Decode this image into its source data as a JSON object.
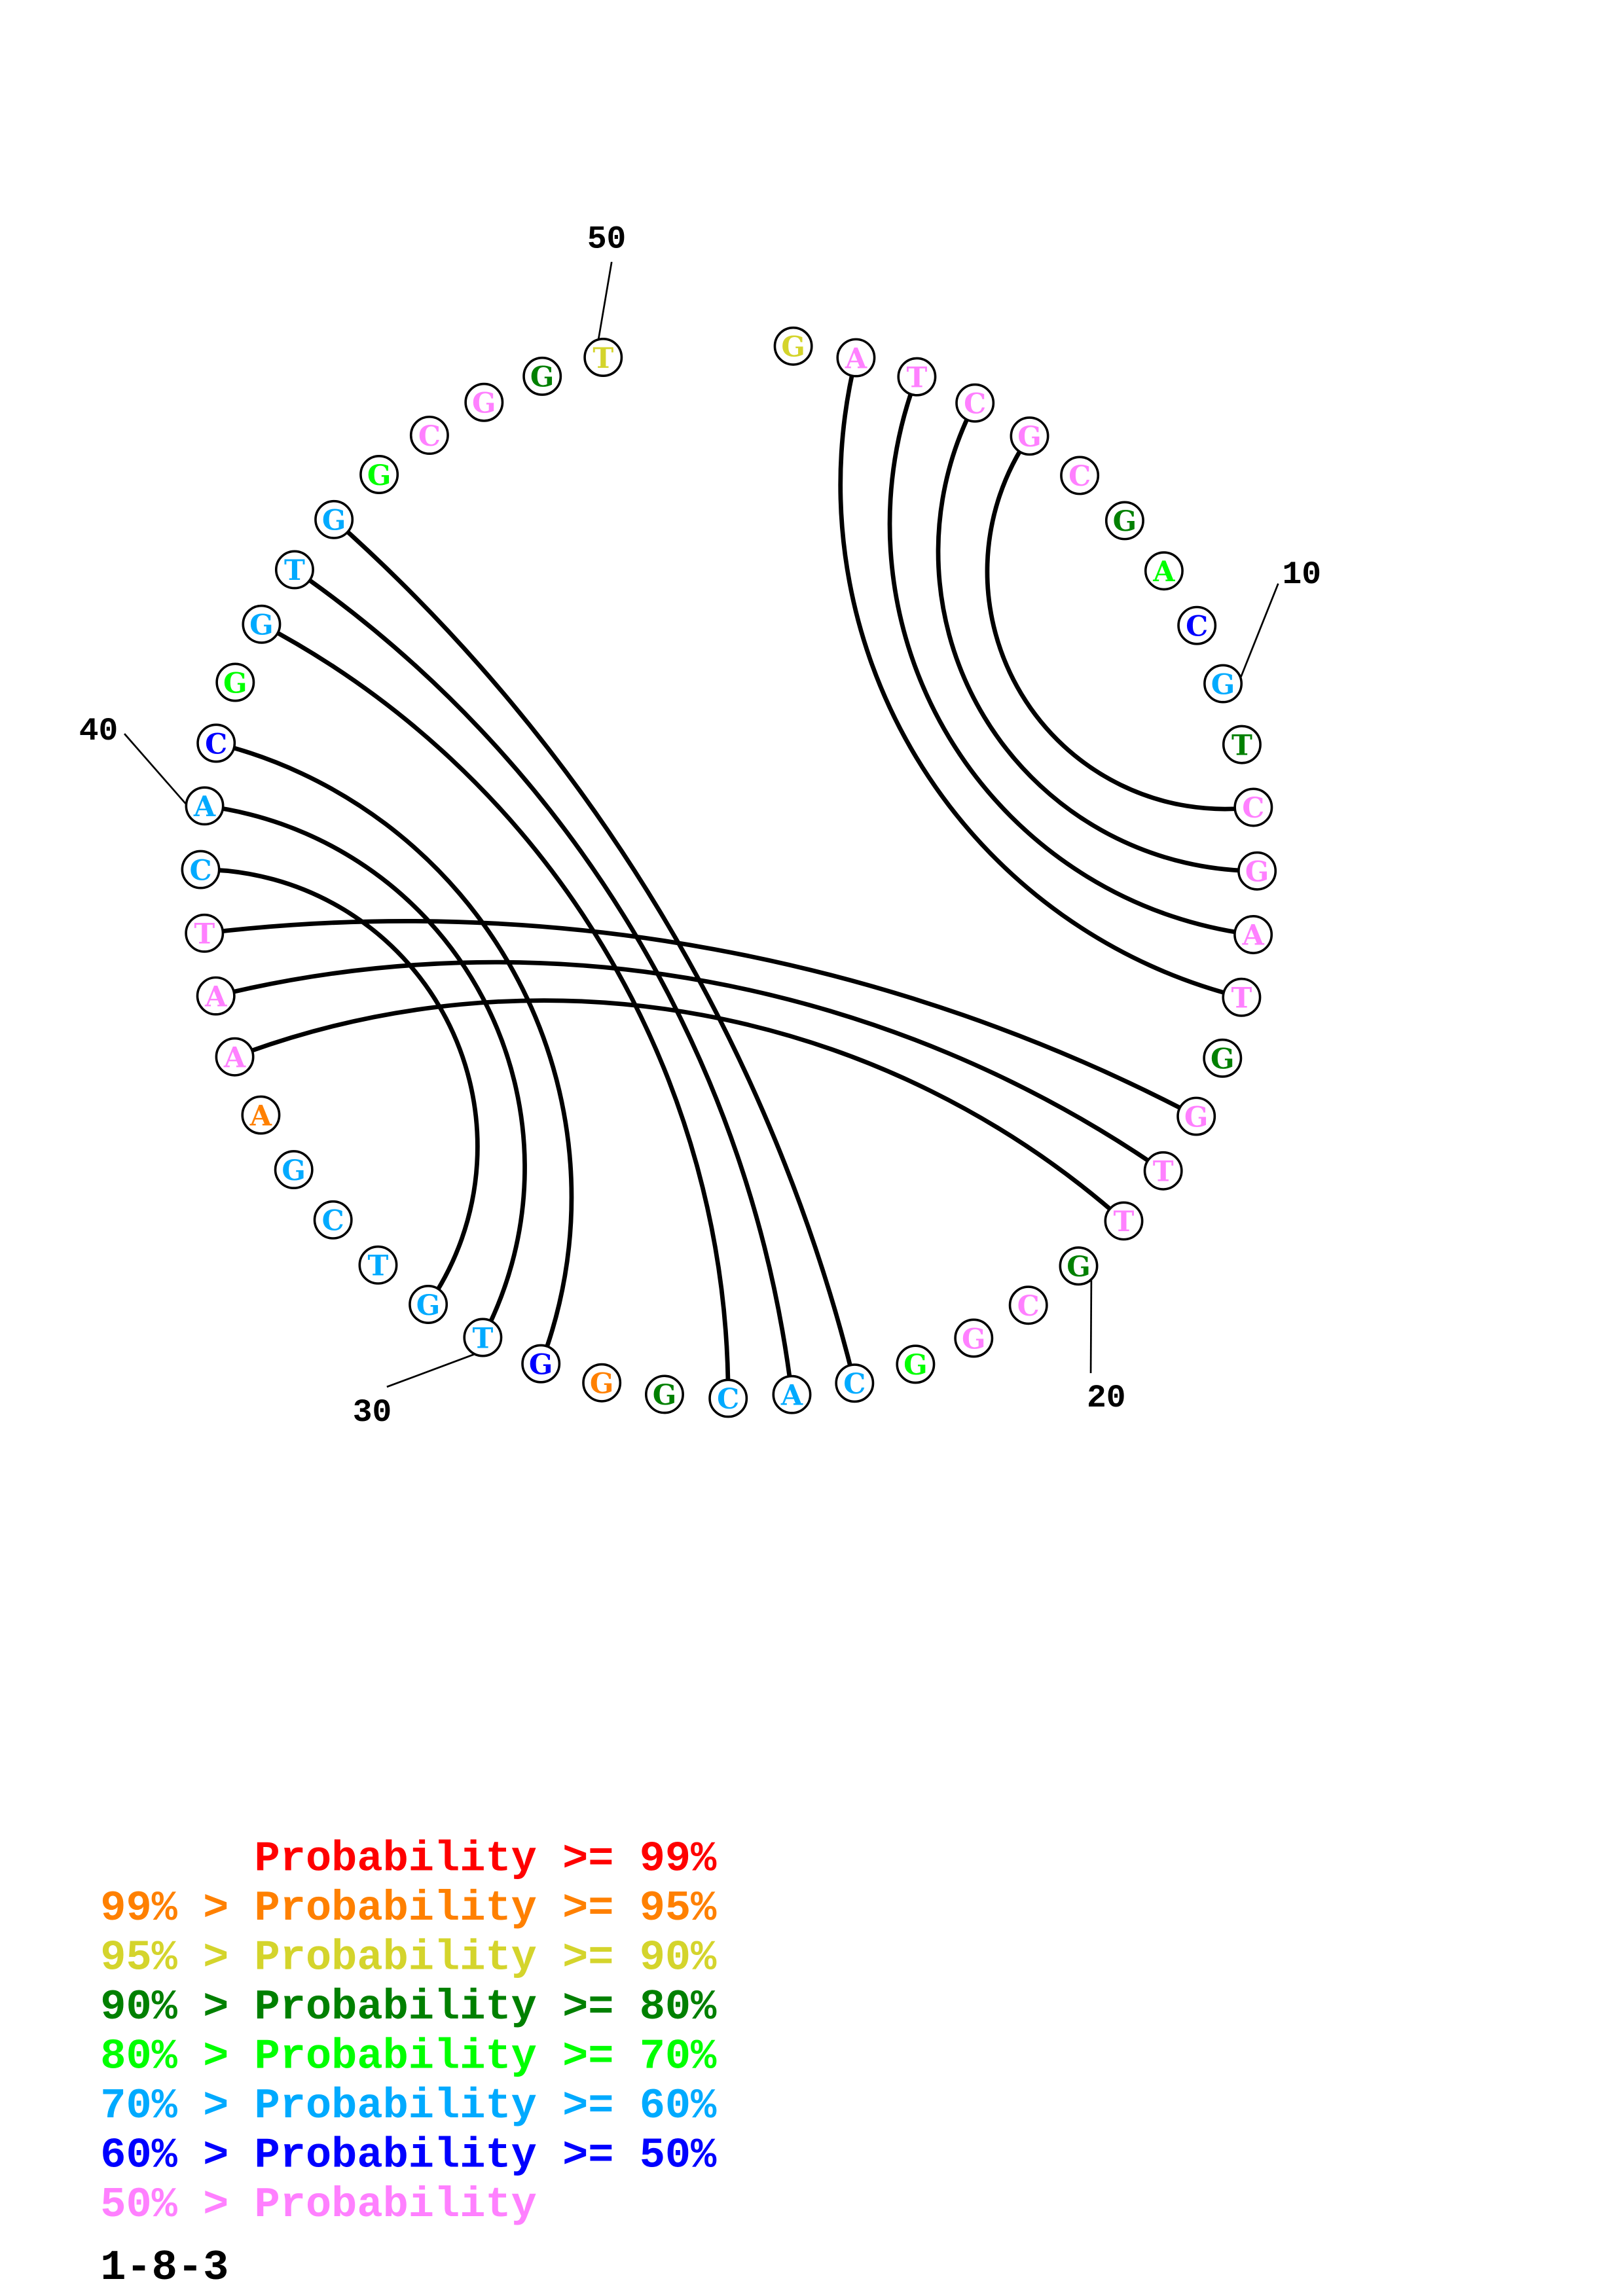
{
  "diagram": {
    "sequence": [
      "G",
      "A",
      "T",
      "C",
      "G",
      "C",
      "G",
      "A",
      "C",
      "G",
      "T",
      "C",
      "G",
      "A",
      "T",
      "G",
      "G",
      "T",
      "T",
      "G",
      "C",
      "G",
      "G",
      "C",
      "A",
      "C",
      "G",
      "G",
      "G",
      "T",
      "G",
      "T",
      "C",
      "G",
      "A",
      "A",
      "A",
      "T",
      "C",
      "A",
      "C",
      "G",
      "G",
      "T",
      "G",
      "G",
      "C",
      "G",
      "G",
      "T"
    ],
    "probability_class": [
      2,
      7,
      7,
      7,
      7,
      7,
      3,
      4,
      6,
      5,
      3,
      7,
      7,
      7,
      7,
      3,
      7,
      7,
      7,
      3,
      7,
      7,
      4,
      5,
      5,
      5,
      3,
      1,
      6,
      5,
      5,
      5,
      5,
      5,
      1,
      7,
      7,
      7,
      5,
      5,
      6,
      4,
      5,
      5,
      5,
      4,
      7,
      7,
      3,
      2
    ],
    "pairs": [
      [
        2,
        15
      ],
      [
        3,
        14
      ],
      [
        4,
        13
      ],
      [
        5,
        12
      ],
      [
        17,
        38
      ],
      [
        18,
        37
      ],
      [
        19,
        36
      ],
      [
        24,
        45
      ],
      [
        25,
        44
      ],
      [
        26,
        43
      ],
      [
        29,
        41
      ],
      [
        30,
        40
      ],
      [
        31,
        39
      ]
    ],
    "position_labels": [
      "10",
      "20",
      "30",
      "40",
      "50"
    ]
  },
  "legend": {
    "colors": [
      "#ff0000",
      "#ff8000",
      "#d4d42c",
      "#008000",
      "#00ff00",
      "#00aaff",
      "#0000ff",
      "#ff80ff"
    ],
    "entries": [
      "      Probability >= 99%",
      "99% > Probability >= 95%",
      "95% > Probability >= 90%",
      "90% > Probability >= 80%",
      "80% > Probability >= 70%",
      "70% > Probability >= 60%",
      "60% > Probability >= 50%",
      "50% > Probability"
    ],
    "caption": "1-8-3"
  }
}
